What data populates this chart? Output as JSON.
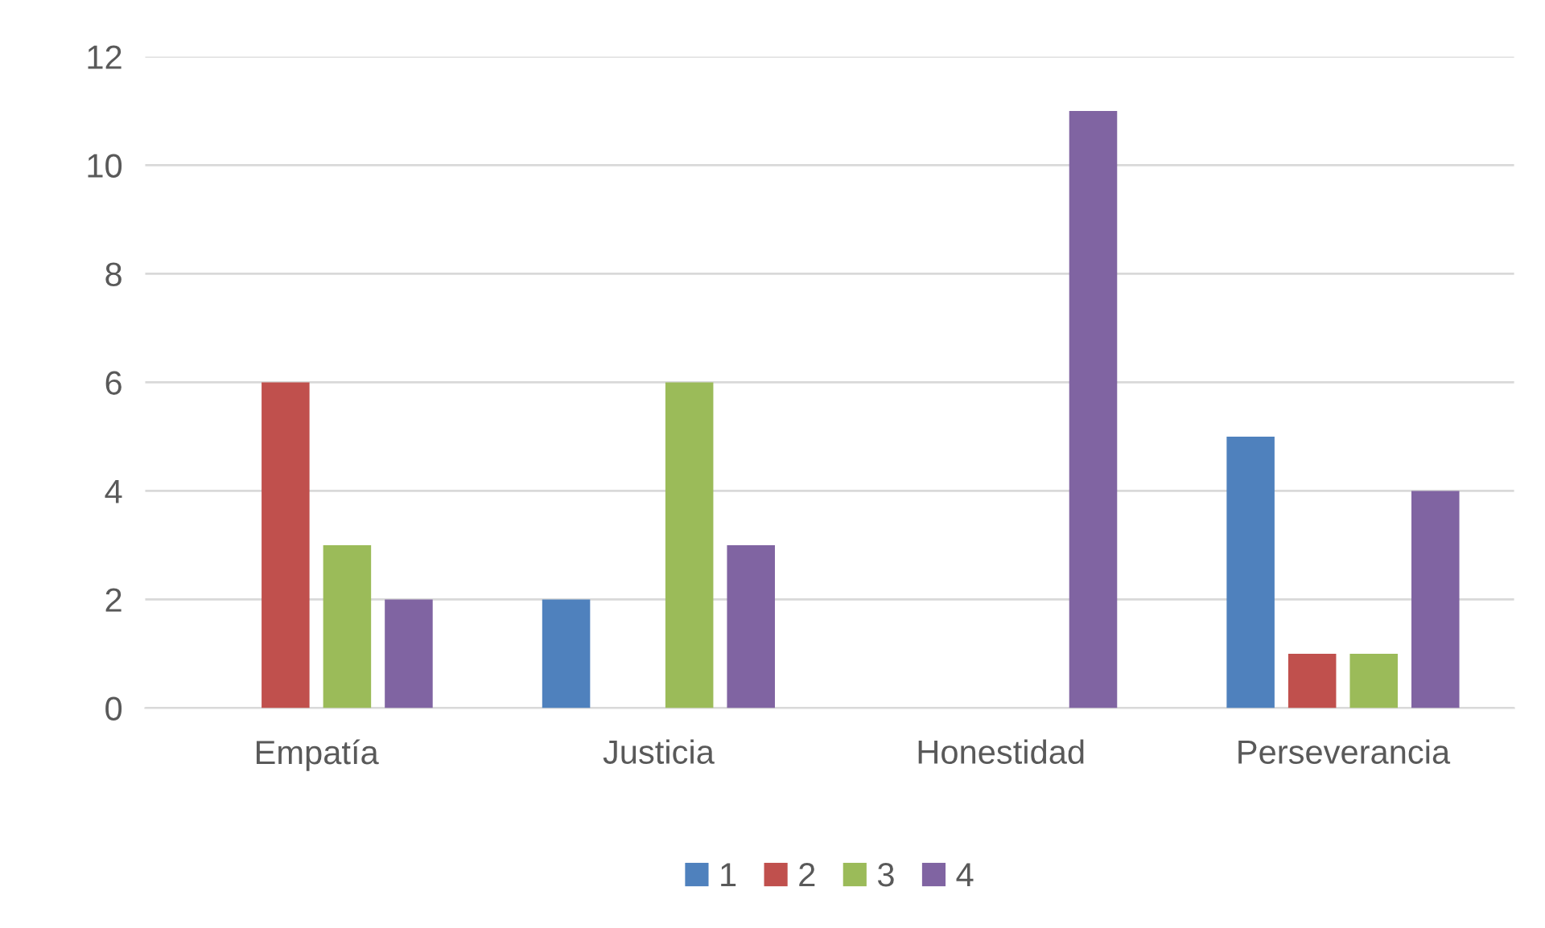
{
  "chart_data": {
    "type": "bar",
    "categories": [
      "Empatía",
      "Justicia",
      "Honestidad",
      "Perseverancia"
    ],
    "series": [
      {
        "name": "1",
        "color": "#4f81bd",
        "values": [
          0,
          2,
          0,
          5
        ]
      },
      {
        "name": "2",
        "color": "#c0504d",
        "values": [
          6,
          0,
          0,
          1
        ]
      },
      {
        "name": "3",
        "color": "#9bbb59",
        "values": [
          3,
          6,
          0,
          1
        ]
      },
      {
        "name": "4",
        "color": "#8064a2",
        "values": [
          2,
          3,
          11,
          4
        ]
      }
    ],
    "ylim": [
      0,
      12
    ],
    "yticks": [
      0,
      2,
      4,
      6,
      8,
      10,
      12
    ],
    "grid": "y",
    "legend": "bottom"
  }
}
